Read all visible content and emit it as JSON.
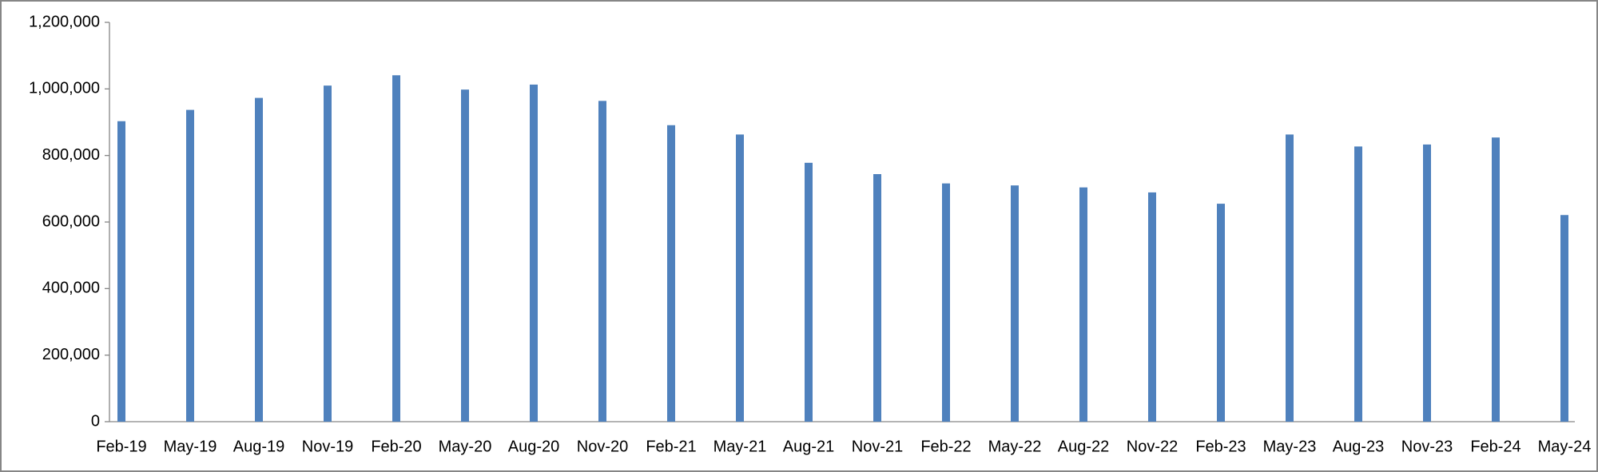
{
  "chart_data": {
    "type": "bar",
    "categories": [
      "Feb-19",
      "May-19",
      "Aug-19",
      "Nov-19",
      "Feb-20",
      "May-20",
      "Aug-20",
      "Nov-20",
      "Feb-21",
      "May-21",
      "Aug-21",
      "Nov-21",
      "Feb-22",
      "May-22",
      "Aug-22",
      "Nov-22",
      "Feb-23",
      "May-23",
      "Aug-23",
      "Nov-23",
      "Feb-24",
      "May-24"
    ],
    "values": [
      903000,
      937000,
      973000,
      1010000,
      1041000,
      998000,
      1013000,
      964000,
      891000,
      863000,
      778000,
      744000,
      716000,
      710000,
      704000,
      689000,
      655000,
      863000,
      827000,
      833000,
      854000,
      621000
    ],
    "color": "#4f81bd",
    "ylim": [
      0,
      1200000
    ],
    "yticks": [
      0,
      {
        "value": 200000,
        "label": "200,000"
      },
      {
        "value": 400000,
        "label": "400,000"
      },
      {
        "value": 600000,
        "label": "600,000"
      },
      {
        "value": 800000,
        "label": "800,000"
      },
      {
        "value": 1000000,
        "label": "1,000,000"
      },
      {
        "value": 1200000,
        "label": "1,200,000"
      }
    ],
    "grid": false
  }
}
